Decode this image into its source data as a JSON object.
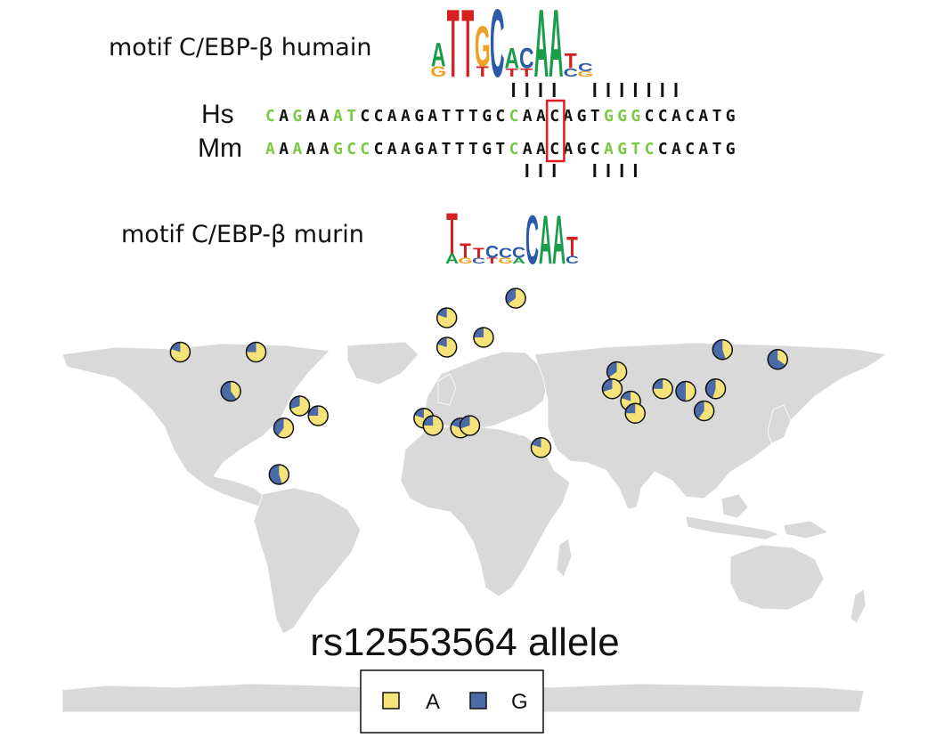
{
  "motif_human_label": "motif C/EBP-β humain",
  "motif_mouse_label": "motif C/EBP-β murin",
  "species": {
    "human": "Hs",
    "mouse": "Mm"
  },
  "colors": {
    "conserved": "#111111",
    "variant": "#7ac943",
    "highlight": "#e41a1c",
    "allele_A": "#f5e37a",
    "allele_G": "#4a6aa8",
    "land": "#d9d9d9",
    "logo_A": "#1a9c4a",
    "logo_C": "#2a5aa8",
    "logo_G": "#f0a020",
    "logo_T": "#d62020"
  },
  "alignment": {
    "human": "CAGAAATCCAAGATTTGCCAACAGTGGGCCACATG",
    "mouse": "AAAAAGCCCAAGATTTGTCAACAGCAGTCCACATG",
    "human_green": [
      0,
      2,
      5,
      6,
      18,
      25,
      26,
      27
    ],
    "mouse_green": [
      0,
      2,
      5,
      6,
      7,
      18,
      25,
      26,
      27,
      28
    ],
    "highlight_index": 21,
    "human_ticks": [
      18,
      19,
      20,
      21,
      24,
      25,
      26,
      27,
      28,
      29,
      30
    ],
    "mouse_ticks": [
      19,
      20,
      21,
      24,
      25,
      26,
      27
    ]
  },
  "logos": {
    "human": [
      [
        {
          "l": "G",
          "h": 0.15
        },
        {
          "l": "A",
          "h": 0.35
        }
      ],
      [
        {
          "l": "T",
          "h": 1.0
        }
      ],
      [
        {
          "l": "T",
          "h": 1.0
        }
      ],
      [
        {
          "l": "T",
          "h": 0.15
        },
        {
          "l": "G",
          "h": 0.6
        }
      ],
      [
        {
          "l": "C",
          "h": 1.0
        }
      ],
      [
        {
          "l": "T",
          "h": 0.12
        },
        {
          "l": "A",
          "h": 0.3
        }
      ],
      [
        {
          "l": "T",
          "h": 0.12
        },
        {
          "l": "C",
          "h": 0.3
        }
      ],
      [
        {
          "l": "A",
          "h": 1.0
        }
      ],
      [
        {
          "l": "A",
          "h": 1.0
        }
      ],
      [
        {
          "l": "C",
          "h": 0.12
        },
        {
          "l": "T",
          "h": 0.22
        }
      ],
      [
        {
          "l": "G",
          "h": 0.08
        },
        {
          "l": "C",
          "h": 0.12
        }
      ]
    ],
    "mouse": [
      [
        {
          "l": "A",
          "h": 0.2
        },
        {
          "l": "T",
          "h": 0.85
        }
      ],
      [
        {
          "l": "G",
          "h": 0.12
        },
        {
          "l": "T",
          "h": 0.3
        }
      ],
      [
        {
          "l": "C",
          "h": 0.12
        },
        {
          "l": "T",
          "h": 0.2
        }
      ],
      [
        {
          "l": "T",
          "h": 0.12
        },
        {
          "l": "C",
          "h": 0.25
        }
      ],
      [
        {
          "l": "G",
          "h": 0.12
        },
        {
          "l": "C",
          "h": 0.2
        }
      ],
      [
        {
          "l": "A",
          "h": 0.12
        },
        {
          "l": "C",
          "h": 0.22
        }
      ],
      [
        {
          "l": "C",
          "h": 1.0
        }
      ],
      [
        {
          "l": "A",
          "h": 1.0
        }
      ],
      [
        {
          "l": "A",
          "h": 1.0
        }
      ],
      [
        {
          "l": "C",
          "h": 0.15
        },
        {
          "l": "T",
          "h": 0.4
        }
      ]
    ]
  },
  "map": {
    "title": "rs12553564 allele",
    "legend": {
      "a_label": "A",
      "g_label": "G"
    },
    "populations": [
      {
        "lon": -120,
        "lat": 38,
        "a": 0.8
      },
      {
        "lon": -87,
        "lat": 38,
        "a": 0.75
      },
      {
        "lon": -98,
        "lat": 22,
        "a": 0.4
      },
      {
        "lon": -68,
        "lat": 16,
        "a": 0.7
      },
      {
        "lon": -60,
        "lat": 12,
        "a": 0.75
      },
      {
        "lon": -75,
        "lat": 7,
        "a": 0.6
      },
      {
        "lon": -77,
        "lat": -12,
        "a": 0.45
      },
      {
        "lon": -4,
        "lat": 52,
        "a": 0.8
      },
      {
        "lon": -4,
        "lat": 40,
        "a": 0.8
      },
      {
        "lon": 12,
        "lat": 44,
        "a": 0.75
      },
      {
        "lon": 26,
        "lat": 60,
        "a": 0.65
      },
      {
        "lon": -14,
        "lat": 11,
        "a": 0.8
      },
      {
        "lon": -10,
        "lat": 8,
        "a": 0.75
      },
      {
        "lon": 2,
        "lat": 7,
        "a": 0.8
      },
      {
        "lon": 6,
        "lat": 8,
        "a": 0.7
      },
      {
        "lon": 37,
        "lat": -1,
        "a": 0.8
      },
      {
        "lon": 70,
        "lat": 30,
        "a": 0.65
      },
      {
        "lon": 68,
        "lat": 23,
        "a": 0.7
      },
      {
        "lon": 76,
        "lat": 18,
        "a": 0.8
      },
      {
        "lon": 78,
        "lat": 13,
        "a": 0.75
      },
      {
        "lon": 90,
        "lat": 23,
        "a": 0.75
      },
      {
        "lon": 100,
        "lat": 22,
        "a": 0.5
      },
      {
        "lon": 113,
        "lat": 23,
        "a": 0.55
      },
      {
        "lon": 108,
        "lat": 14,
        "a": 0.6
      },
      {
        "lon": 116,
        "lat": 39,
        "a": 0.45
      },
      {
        "lon": 140,
        "lat": 35,
        "a": 0.35
      }
    ]
  }
}
